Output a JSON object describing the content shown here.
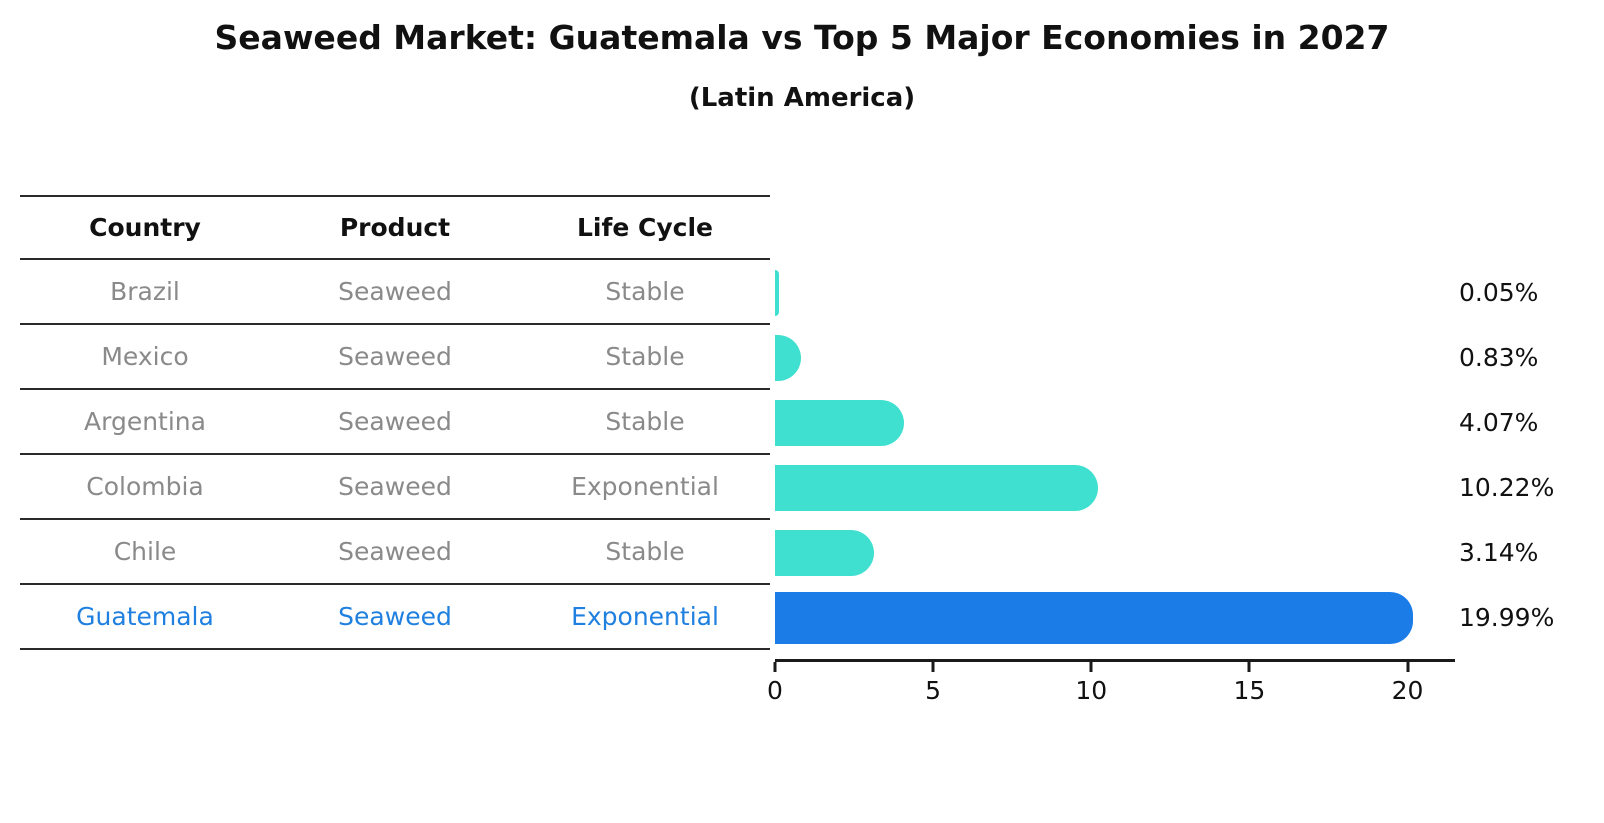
{
  "title": "Seaweed Market: Guatemala vs Top 5 Major Economies in 2027",
  "subtitle": "(Latin America)",
  "table": {
    "headers": [
      "Country",
      "Product",
      "Life Cycle"
    ],
    "rows": [
      {
        "country": "Brazil",
        "product": "Seaweed",
        "life_cycle": "Stable",
        "highlight": false
      },
      {
        "country": "Mexico",
        "product": "Seaweed",
        "life_cycle": "Stable",
        "highlight": false
      },
      {
        "country": "Argentina",
        "product": "Seaweed",
        "life_cycle": "Stable",
        "highlight": false
      },
      {
        "country": "Colombia",
        "product": "Seaweed",
        "life_cycle": "Exponential",
        "highlight": false
      },
      {
        "country": "Chile",
        "product": "Seaweed",
        "life_cycle": "Stable",
        "highlight": false
      },
      {
        "country": "Guatemala",
        "product": "Seaweed",
        "life_cycle": "Exponential",
        "highlight": true
      }
    ]
  },
  "chart_data": {
    "type": "bar",
    "orientation": "horizontal",
    "title": "Seaweed Market: Guatemala vs Top 5 Major Economies in 2027",
    "subtitle": "(Latin America)",
    "categories": [
      "Brazil",
      "Mexico",
      "Argentina",
      "Colombia",
      "Chile",
      "Guatemala"
    ],
    "values": [
      0.05,
      0.83,
      4.07,
      10.22,
      3.14,
      19.99
    ],
    "value_labels": [
      "0.05%",
      "0.83%",
      "4.07%",
      "10.22%",
      "3.14%",
      "19.99%"
    ],
    "unit": "%",
    "xticks": [
      0,
      5,
      10,
      15,
      20
    ],
    "xlim": [
      0,
      21.5
    ],
    "grid": false,
    "legend": false,
    "bar_color": "#40E0D0",
    "highlight_color": "#1B7CE8",
    "highlight_text_color": "#2080E0",
    "highlight_index": 5
  }
}
